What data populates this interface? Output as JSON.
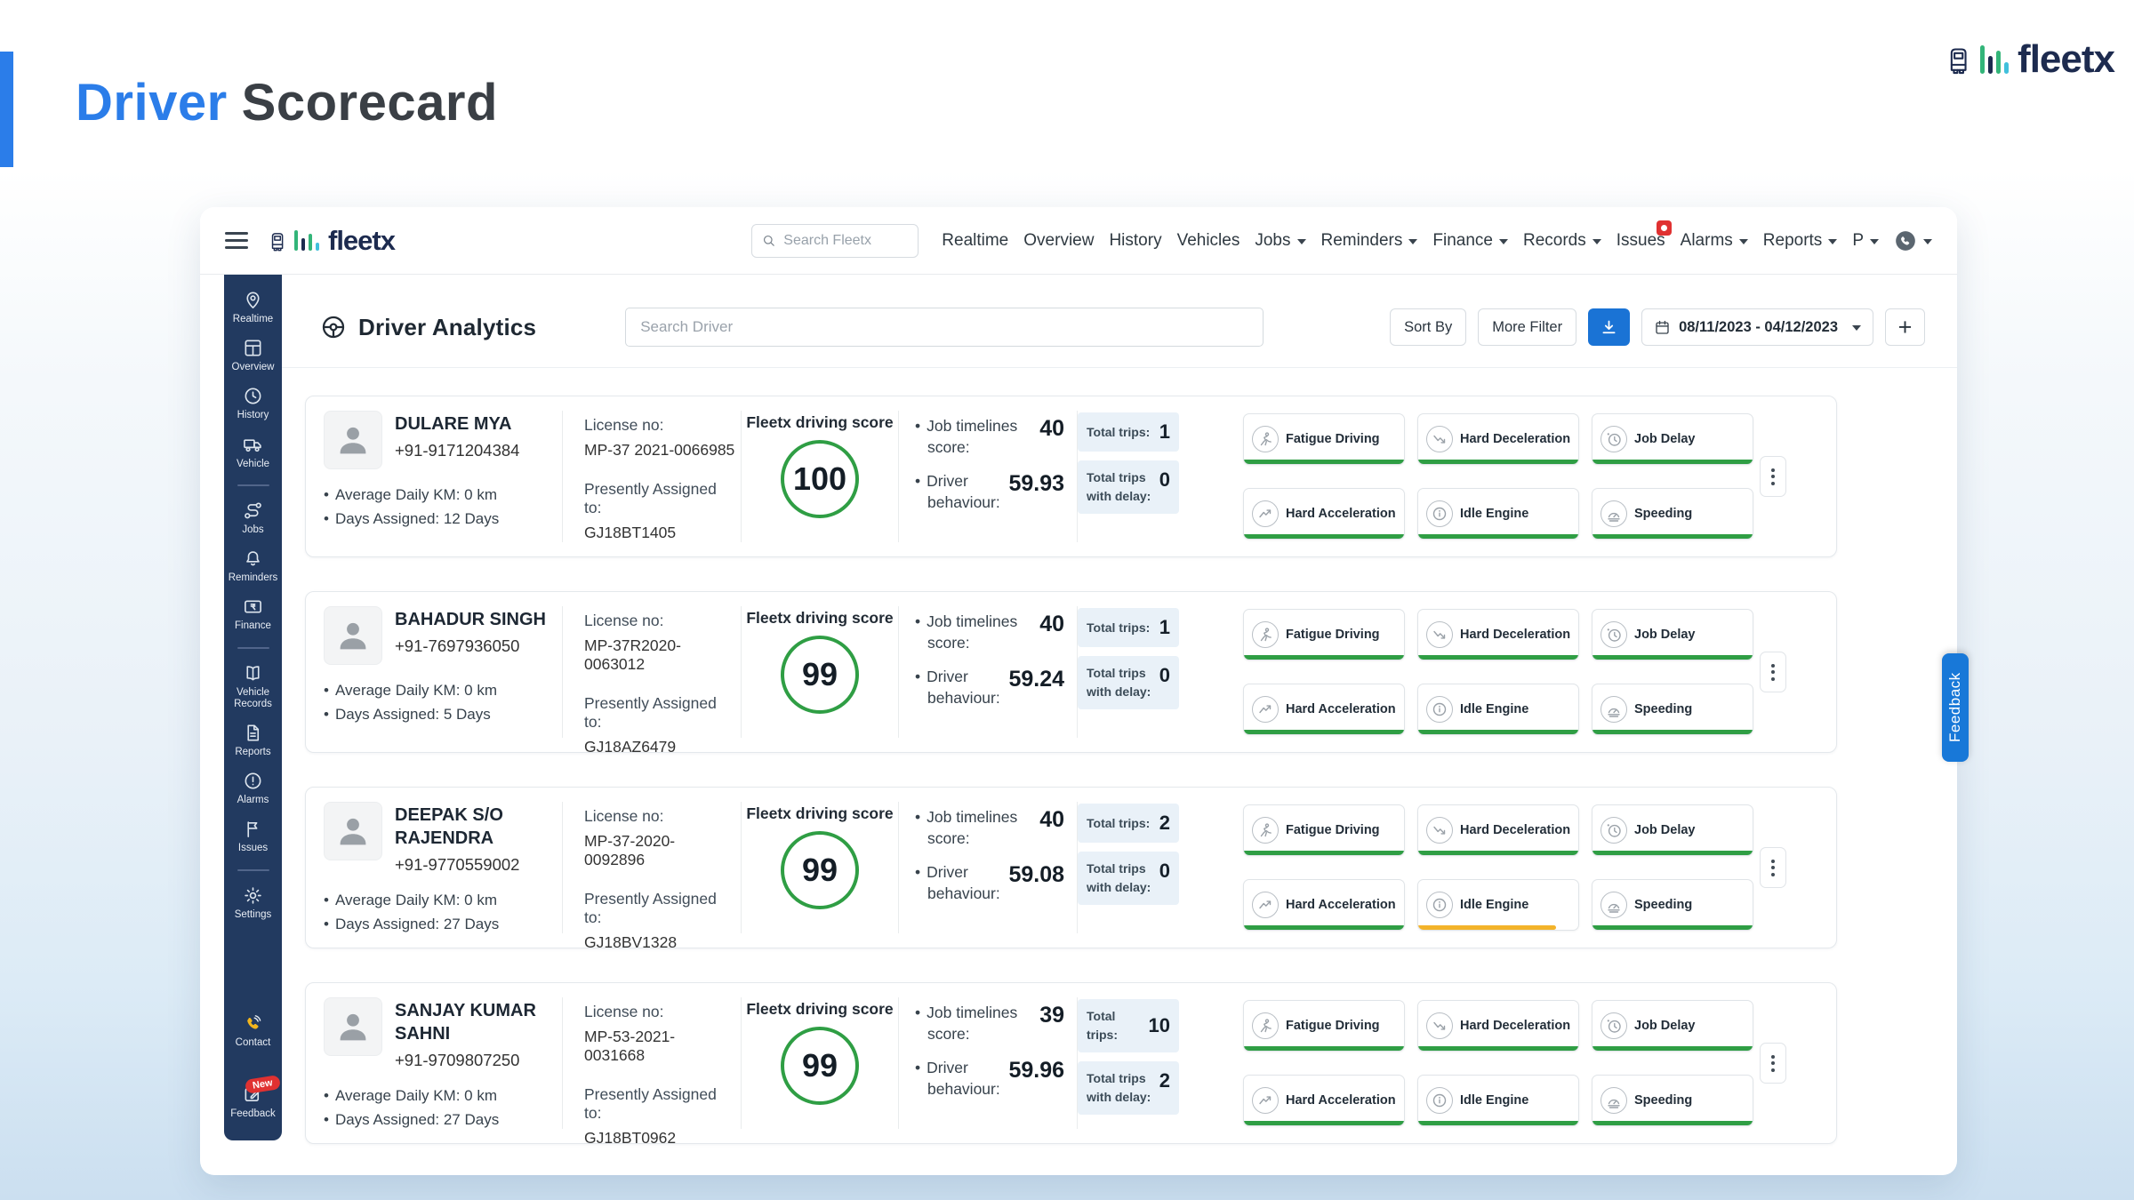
{
  "page": {
    "title_primary": "Driver",
    "title_secondary": "Scorecard"
  },
  "brand": {
    "name": "fleetx"
  },
  "colors": {
    "accent": "#2b7de9",
    "logo_navy": "#1d2b4f",
    "sidebar_bg": "#223a60",
    "score_good": "#2f9e44",
    "score_warn": "#f3b32a",
    "primary_button": "#1a73d5",
    "feedback_tab": "#1878d8",
    "notification_red": "#e03131"
  },
  "app_header": {
    "search_placeholder": "Search Fleetx",
    "nav": [
      {
        "label": "Realtime",
        "dropdown": false
      },
      {
        "label": "Overview",
        "dropdown": false
      },
      {
        "label": "History",
        "dropdown": false
      },
      {
        "label": "Vehicles",
        "dropdown": false
      },
      {
        "label": "Jobs",
        "dropdown": true
      },
      {
        "label": "Reminders",
        "dropdown": true
      },
      {
        "label": "Finance",
        "dropdown": true
      },
      {
        "label": "Records",
        "dropdown": true
      },
      {
        "label": "Issues",
        "dropdown": false,
        "badge": true
      },
      {
        "label": "Alarms",
        "dropdown": true
      },
      {
        "label": "Reports",
        "dropdown": true
      },
      {
        "label": "P",
        "dropdown": true
      },
      {
        "icon": "support-phone-icon",
        "dropdown": true
      }
    ]
  },
  "sidebar": {
    "groups": [
      {
        "items": [
          {
            "label": "Realtime",
            "icon": "realtime-icon"
          },
          {
            "label": "Overview",
            "icon": "overview-icon"
          },
          {
            "label": "History",
            "icon": "history-icon"
          },
          {
            "label": "Vehicle",
            "icon": "vehicle-icon"
          }
        ]
      },
      {
        "items": [
          {
            "label": "Jobs",
            "icon": "jobs-icon"
          },
          {
            "label": "Reminders",
            "icon": "reminders-icon"
          },
          {
            "label": "Finance",
            "icon": "finance-icon"
          }
        ]
      },
      {
        "items": [
          {
            "label": "Vehicle Records",
            "icon": "vehicle-records-icon"
          },
          {
            "label": "Reports",
            "icon": "reports-icon"
          },
          {
            "label": "Alarms",
            "icon": "alarms-icon"
          },
          {
            "label": "Issues",
            "icon": "issues-icon"
          }
        ]
      },
      {
        "items": [
          {
            "label": "Settings",
            "icon": "settings-icon"
          }
        ]
      }
    ],
    "footer": [
      {
        "label": "Contact",
        "icon": "contact-phone-icon"
      },
      {
        "label": "Feedback",
        "icon": "feedback-edit-icon",
        "badge": "New"
      }
    ]
  },
  "toolbar": {
    "title": "Driver Analytics",
    "search_placeholder": "Search Driver",
    "sort_by_label": "Sort By",
    "more_filter_label": "More Filter",
    "date_range": "08/11/2023 - 04/12/2023",
    "add_label": "+"
  },
  "card_labels": {
    "license_no": "License no:",
    "presently_assigned": "Presently Assigned to:",
    "driving_score": "Fleetx driving score",
    "job_timelines": "Job timelines score:",
    "driver_behaviour": "Driver behaviour:",
    "total_trips": "Total trips:",
    "total_trips_delay": "Total trips with delay:"
  },
  "behaviors": {
    "labels": [
      "Fatigue Driving",
      "Hard Deceleration",
      "Job Delay",
      "Hard Acceleration",
      "Idle Engine",
      "Speeding"
    ],
    "icons": [
      "runner-icon",
      "trend-down-icon",
      "clock-alert-icon",
      "trend-up-icon",
      "info-circle-icon",
      "gauge-icon"
    ]
  },
  "drivers": [
    {
      "name": "DULARE MYA",
      "phone": "+91-9171204384",
      "avg_daily_km": "Average Daily KM: 0 km",
      "days_assigned": "Days Assigned: 12 Days",
      "license_no": "MP-37 2021-0066985",
      "assigned_to": "GJ18BT1405",
      "driving_score": "100",
      "job_timelines_score": "40",
      "driver_behaviour": "59.93",
      "total_trips": "1",
      "total_trips_with_delay": "0",
      "behavior_status": [
        "good",
        "good",
        "good",
        "good",
        "good",
        "good"
      ]
    },
    {
      "name": "BAHADUR SINGH",
      "phone": "+91-7697936050",
      "avg_daily_km": "Average Daily KM: 0 km",
      "days_assigned": "Days Assigned: 5 Days",
      "license_no": "MP-37R2020-0063012",
      "assigned_to": "GJ18AZ6479",
      "driving_score": "99",
      "job_timelines_score": "40",
      "driver_behaviour": "59.24",
      "total_trips": "1",
      "total_trips_with_delay": "0",
      "behavior_status": [
        "good",
        "good",
        "good",
        "good",
        "good",
        "good"
      ]
    },
    {
      "name": "DEEPAK S/O RAJENDRA",
      "phone": "+91-9770559002",
      "avg_daily_km": "Average Daily KM: 0 km",
      "days_assigned": "Days Assigned: 27 Days",
      "license_no": "MP-37-2020-0092896",
      "assigned_to": "GJ18BV1328",
      "driving_score": "99",
      "job_timelines_score": "40",
      "driver_behaviour": "59.08",
      "total_trips": "2",
      "total_trips_with_delay": "0",
      "behavior_status": [
        "good",
        "good",
        "good",
        "good",
        "warn",
        "good"
      ]
    },
    {
      "name": "SANJAY KUMAR SAHNI",
      "phone": "+91-9709807250",
      "avg_daily_km": "Average Daily KM: 0 km",
      "days_assigned": "Days Assigned: 27 Days",
      "license_no": "MP-53-2021-0031668",
      "assigned_to": "GJ18BT0962",
      "driving_score": "99",
      "job_timelines_score": "39",
      "driver_behaviour": "59.96",
      "total_trips": "10",
      "total_trips_with_delay": "2",
      "behavior_status": [
        "good",
        "good",
        "good",
        "good",
        "good",
        "good"
      ]
    }
  ],
  "feedback_tab": {
    "label": "Feedback"
  }
}
